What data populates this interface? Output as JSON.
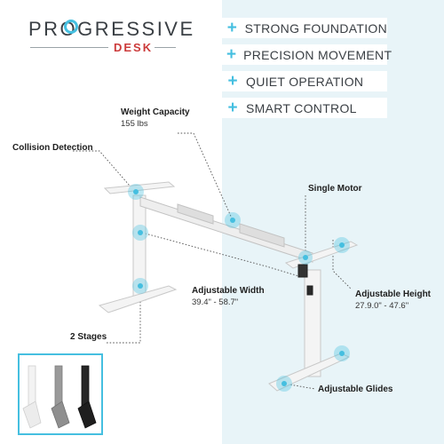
{
  "brand": {
    "name": "PROGRESSIVE",
    "sub": "DESK"
  },
  "features": [
    {
      "icon": "plus-icon",
      "label": "STRONG FOUNDATION"
    },
    {
      "icon": "plus-icon",
      "label": "PRECISION MOVEMENT"
    },
    {
      "icon": "plus-icon",
      "label": "QUIET OPERATION"
    },
    {
      "icon": "plus-icon",
      "label": "SMART CONTROL"
    }
  ],
  "callouts": {
    "weight_capacity": {
      "title": "Weight Capacity",
      "value": "155 lbs"
    },
    "collision_detection": {
      "title": "Collision Detection"
    },
    "single_motor": {
      "title": "Single Motor"
    },
    "adjustable_width": {
      "title": "Adjustable Width",
      "value": "39.4\" - 58.7\""
    },
    "adjustable_height": {
      "title": "Adjustable Height",
      "value": "27.9.0\" - 47.6\""
    },
    "two_stages": {
      "title": "2 Stages"
    },
    "adjustable_glides": {
      "title": "Adjustable Glides"
    }
  },
  "colors": {
    "accent": "#45bfe0",
    "brand_red": "#cc3b3b",
    "panel": "#e8f4f8",
    "frame": "#f2f2f2"
  },
  "color_options": [
    "white",
    "gray",
    "black"
  ]
}
